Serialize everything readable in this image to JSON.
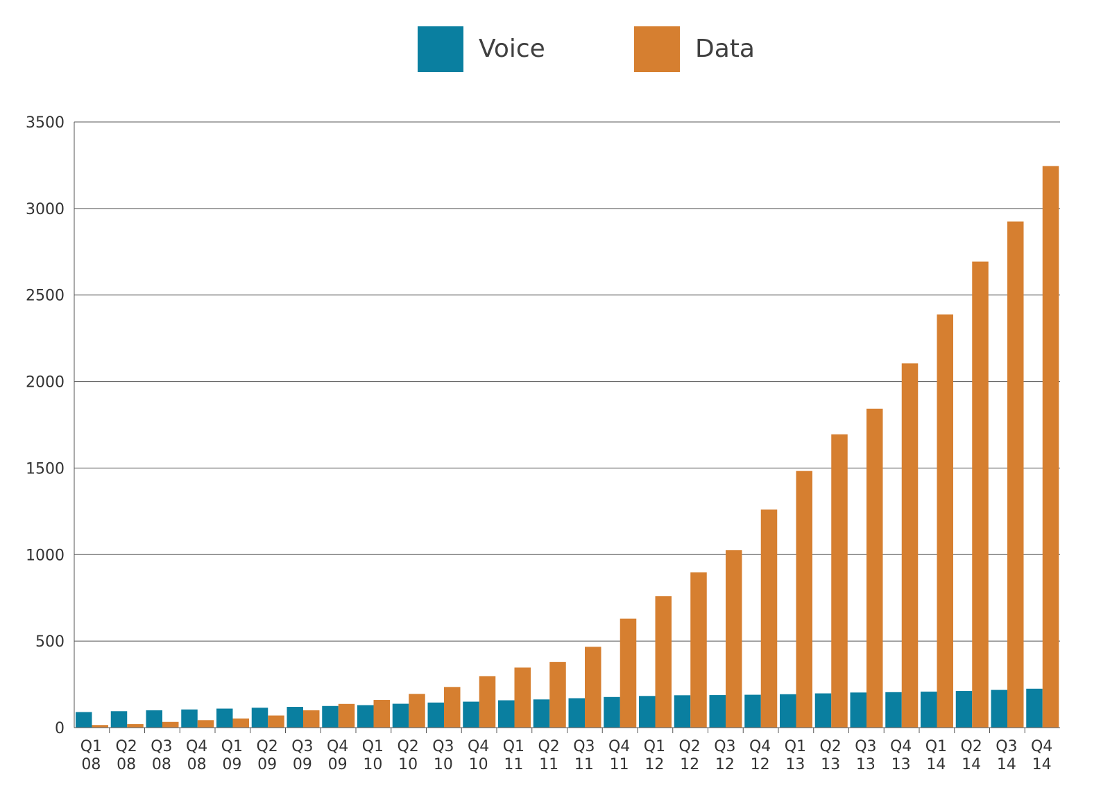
{
  "chart_data": {
    "type": "bar",
    "title": "",
    "xlabel": "",
    "ylabel": "",
    "ylim": [
      0,
      3500
    ],
    "yticks": [
      "0",
      "500",
      "1000",
      "1500",
      "2000",
      "2500",
      "3000",
      "3500"
    ],
    "grid": true,
    "legend_position": "top-center",
    "categories": [
      [
        "Q1",
        "08"
      ],
      [
        "Q2",
        "08"
      ],
      [
        "Q3",
        "08"
      ],
      [
        "Q4",
        "08"
      ],
      [
        "Q1",
        "09"
      ],
      [
        "Q2",
        "09"
      ],
      [
        "Q3",
        "09"
      ],
      [
        "Q4",
        "09"
      ],
      [
        "Q1",
        "10"
      ],
      [
        "Q2",
        "10"
      ],
      [
        "Q3",
        "10"
      ],
      [
        "Q4",
        "10"
      ],
      [
        "Q1",
        "11"
      ],
      [
        "Q2",
        "11"
      ],
      [
        "Q3",
        "11"
      ],
      [
        "Q4",
        "11"
      ],
      [
        "Q1",
        "12"
      ],
      [
        "Q2",
        "12"
      ],
      [
        "Q3",
        "12"
      ],
      [
        "Q4",
        "12"
      ],
      [
        "Q1",
        "13"
      ],
      [
        "Q2",
        "13"
      ],
      [
        "Q3",
        "13"
      ],
      [
        "Q4",
        "13"
      ],
      [
        "Q1",
        "14"
      ],
      [
        "Q2",
        "14"
      ],
      [
        "Q3",
        "14"
      ],
      [
        "Q4",
        "14"
      ]
    ],
    "series": [
      {
        "name": "Voice",
        "color": "#0a7fa0",
        "values": [
          90,
          95,
          100,
          105,
          110,
          115,
          120,
          125,
          130,
          138,
          145,
          150,
          158,
          163,
          170,
          177,
          183,
          187,
          188,
          190,
          193,
          198,
          203,
          205,
          208,
          212,
          218,
          225
        ]
      },
      {
        "name": "Data",
        "color": "#d67f30",
        "values": [
          15,
          20,
          33,
          43,
          53,
          70,
          100,
          137,
          160,
          195,
          235,
          297,
          347,
          380,
          467,
          630,
          760,
          897,
          1025,
          1260,
          1483,
          1695,
          1843,
          2105,
          2388,
          2693,
          2925,
          3245
        ]
      }
    ]
  }
}
